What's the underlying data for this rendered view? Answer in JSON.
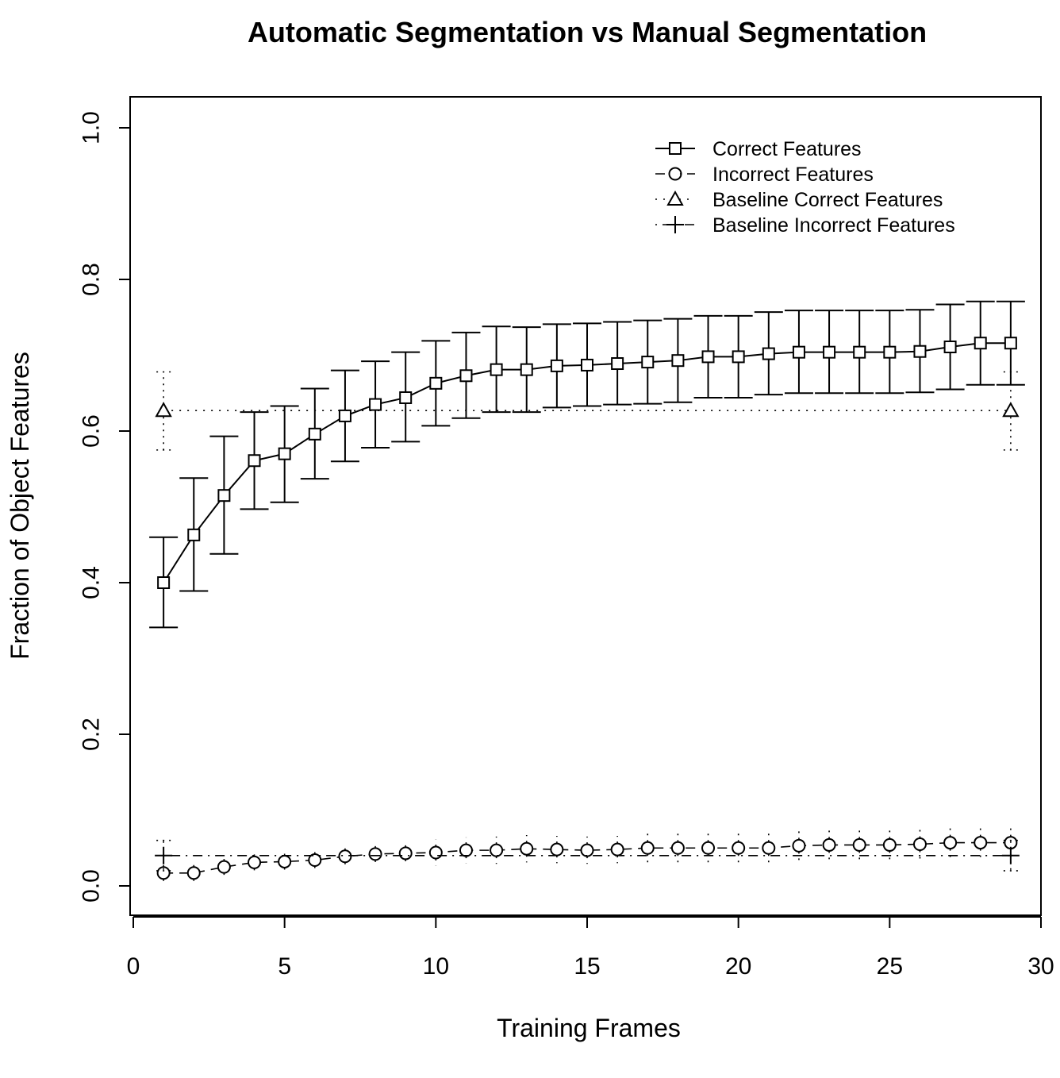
{
  "chart_data": {
    "type": "line",
    "title": "Automatic Segmentation vs Manual Segmentation",
    "xlabel": "Training Frames",
    "ylabel": "Fraction of Object Features",
    "xlim": [
      0,
      30
    ],
    "ylim": [
      0.0,
      1.0
    ],
    "xticks": [
      "0",
      "5",
      "10",
      "15",
      "20",
      "25",
      "30"
    ],
    "yticks": [
      "0.0",
      "0.2",
      "0.4",
      "0.6",
      "0.8",
      "1.0"
    ],
    "grid": false,
    "legend_position": "top-right",
    "series": [
      {
        "name": "Correct Features",
        "line": "solid",
        "marker": "square",
        "x": [
          1,
          2,
          3,
          4,
          5,
          6,
          7,
          8,
          9,
          10,
          11,
          12,
          13,
          14,
          15,
          16,
          17,
          18,
          19,
          20,
          21,
          22,
          23,
          24,
          25,
          26,
          27,
          28,
          29
        ],
        "values": [
          0.4,
          0.463,
          0.515,
          0.561,
          0.57,
          0.596,
          0.62,
          0.635,
          0.644,
          0.663,
          0.673,
          0.681,
          0.681,
          0.686,
          0.687,
          0.689,
          0.691,
          0.693,
          0.698,
          0.698,
          0.702,
          0.704,
          0.704,
          0.704,
          0.704,
          0.705,
          0.711,
          0.716,
          0.716
        ],
        "err_upper": [
          0.46,
          0.538,
          0.593,
          0.625,
          0.633,
          0.656,
          0.68,
          0.692,
          0.704,
          0.719,
          0.73,
          0.738,
          0.737,
          0.741,
          0.742,
          0.744,
          0.746,
          0.748,
          0.752,
          0.752,
          0.757,
          0.759,
          0.759,
          0.759,
          0.759,
          0.76,
          0.767,
          0.771,
          0.771
        ],
        "err_lower": [
          0.341,
          0.389,
          0.438,
          0.497,
          0.506,
          0.537,
          0.56,
          0.578,
          0.586,
          0.607,
          0.617,
          0.625,
          0.625,
          0.631,
          0.633,
          0.635,
          0.636,
          0.638,
          0.644,
          0.644,
          0.648,
          0.65,
          0.65,
          0.65,
          0.65,
          0.651,
          0.655,
          0.661,
          0.661
        ]
      },
      {
        "name": "Incorrect Features",
        "line": "dashed",
        "marker": "circle",
        "x": [
          1,
          2,
          3,
          4,
          5,
          6,
          7,
          8,
          9,
          10,
          11,
          12,
          13,
          14,
          15,
          16,
          17,
          18,
          19,
          20,
          21,
          22,
          23,
          24,
          25,
          26,
          27,
          28,
          29
        ],
        "values": [
          0.017,
          0.017,
          0.025,
          0.031,
          0.032,
          0.034,
          0.039,
          0.042,
          0.043,
          0.044,
          0.047,
          0.047,
          0.049,
          0.048,
          0.047,
          0.048,
          0.05,
          0.05,
          0.05,
          0.05,
          0.05,
          0.053,
          0.054,
          0.054,
          0.054,
          0.055,
          0.057,
          0.057,
          0.057
        ],
        "err_upper": [
          0.028,
          0.029,
          0.037,
          0.043,
          0.045,
          0.048,
          0.054,
          0.058,
          0.059,
          0.061,
          0.064,
          0.065,
          0.067,
          0.066,
          0.065,
          0.066,
          0.069,
          0.069,
          0.069,
          0.069,
          0.069,
          0.072,
          0.073,
          0.073,
          0.073,
          0.075,
          0.077,
          0.077,
          0.077
        ],
        "err_lower": [
          0.006,
          0.005,
          0.013,
          0.019,
          0.019,
          0.02,
          0.024,
          0.026,
          0.027,
          0.027,
          0.03,
          0.029,
          0.031,
          0.03,
          0.029,
          0.03,
          0.031,
          0.031,
          0.031,
          0.031,
          0.031,
          0.034,
          0.035,
          0.035,
          0.035,
          0.035,
          0.037,
          0.037,
          0.037
        ]
      },
      {
        "name": "Baseline Correct Features",
        "line": "dotted",
        "marker": "triangle",
        "x": [
          1,
          29
        ],
        "values": [
          0.627,
          0.627
        ],
        "err_upper": [
          0.678,
          0.678
        ],
        "err_lower": [
          0.575,
          0.575
        ]
      },
      {
        "name": "Baseline Incorrect Features",
        "line": "dotdash",
        "marker": "plus",
        "x": [
          1,
          29
        ],
        "values": [
          0.04,
          0.04
        ],
        "err_upper": [
          0.06,
          0.06
        ],
        "err_lower": [
          0.02,
          0.02
        ]
      }
    ]
  }
}
